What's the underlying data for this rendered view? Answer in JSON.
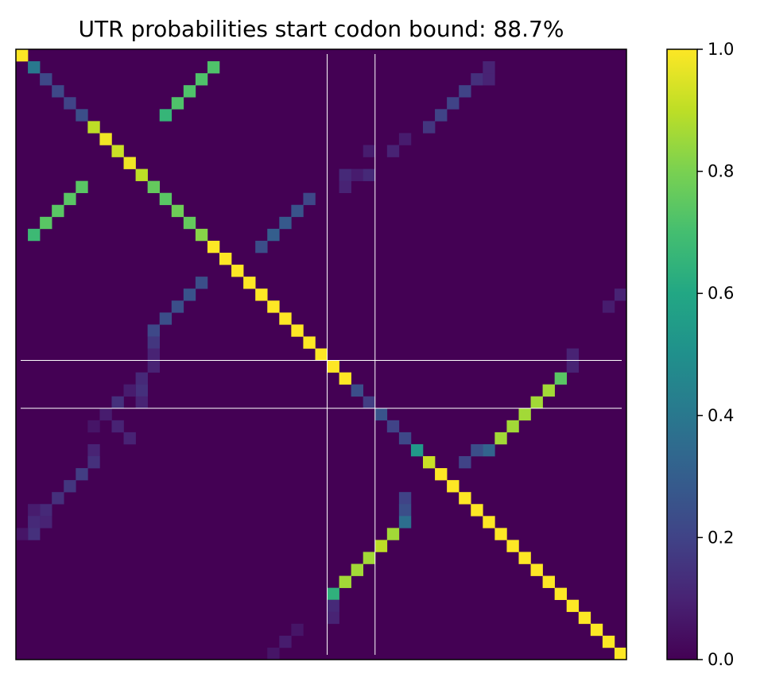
{
  "chart_data": {
    "type": "heatmap",
    "title": "UTR probabilities start codon bound: 88.7%",
    "xlabel": "",
    "ylabel": "",
    "grid": false,
    "x_ticks_visible": false,
    "y_ticks_visible": false,
    "n": 51,
    "colormap": "viridis",
    "colorbar": {
      "range": [
        0,
        1
      ],
      "ticks": [
        0.0,
        0.2,
        0.4,
        0.6,
        0.8,
        1.0
      ],
      "tick_labels": [
        "0.0",
        "0.2",
        "0.4",
        "0.6",
        "0.8",
        "1.0"
      ]
    },
    "reference_lines": {
      "vertical": [
        26,
        30
      ],
      "horizontal": [
        26,
        30
      ],
      "color": "#ffffff"
    },
    "cells": [
      [
        0,
        0,
        1.0
      ],
      [
        1,
        1,
        0.4
      ],
      [
        2,
        2,
        0.22
      ],
      [
        3,
        3,
        0.22
      ],
      [
        4,
        4,
        0.2
      ],
      [
        5,
        5,
        0.24
      ],
      [
        6,
        6,
        0.9
      ],
      [
        7,
        7,
        0.98
      ],
      [
        8,
        8,
        0.92
      ],
      [
        9,
        9,
        0.98
      ],
      [
        10,
        10,
        0.9
      ],
      [
        11,
        11,
        0.76
      ],
      [
        12,
        12,
        0.74
      ],
      [
        13,
        13,
        0.78
      ],
      [
        14,
        14,
        0.76
      ],
      [
        15,
        15,
        0.82
      ],
      [
        16,
        16,
        1.0
      ],
      [
        17,
        17,
        1.0
      ],
      [
        18,
        18,
        1.0
      ],
      [
        19,
        19,
        1.0
      ],
      [
        20,
        20,
        1.0
      ],
      [
        21,
        21,
        1.0
      ],
      [
        22,
        22,
        1.0
      ],
      [
        23,
        23,
        1.0
      ],
      [
        24,
        24,
        1.0
      ],
      [
        25,
        25,
        1.0
      ],
      [
        26,
        26,
        1.0
      ],
      [
        27,
        27,
        1.0
      ],
      [
        28,
        28,
        0.24
      ],
      [
        29,
        29,
        0.18
      ],
      [
        30,
        30,
        0.26
      ],
      [
        31,
        31,
        0.2
      ],
      [
        32,
        32,
        0.22
      ],
      [
        33,
        33,
        0.54
      ],
      [
        34,
        34,
        0.92
      ],
      [
        35,
        35,
        1.0
      ],
      [
        36,
        36,
        1.0
      ],
      [
        37,
        37,
        1.0
      ],
      [
        38,
        38,
        1.0
      ],
      [
        39,
        39,
        1.0
      ],
      [
        40,
        40,
        1.0
      ],
      [
        41,
        41,
        1.0
      ],
      [
        42,
        42,
        1.0
      ],
      [
        43,
        43,
        1.0
      ],
      [
        44,
        44,
        1.0
      ],
      [
        45,
        45,
        1.0
      ],
      [
        46,
        46,
        1.0
      ],
      [
        47,
        47,
        1.0
      ],
      [
        48,
        48,
        1.0
      ],
      [
        49,
        49,
        1.0
      ],
      [
        50,
        50,
        1.0
      ],
      [
        1,
        16,
        0.72
      ],
      [
        2,
        15,
        0.72
      ],
      [
        3,
        14,
        0.72
      ],
      [
        4,
        13,
        0.72
      ],
      [
        5,
        12,
        0.66
      ],
      [
        11,
        5,
        0.74
      ],
      [
        12,
        4,
        0.74
      ],
      [
        13,
        3,
        0.74
      ],
      [
        14,
        2,
        0.74
      ],
      [
        15,
        1,
        0.68
      ],
      [
        1,
        39,
        0.1
      ],
      [
        2,
        38,
        0.14
      ],
      [
        2,
        39,
        0.1
      ],
      [
        3,
        37,
        0.2
      ],
      [
        4,
        36,
        0.2
      ],
      [
        5,
        35,
        0.2
      ],
      [
        6,
        34,
        0.16
      ],
      [
        7,
        32,
        0.08
      ],
      [
        8,
        31,
        0.1
      ],
      [
        8,
        29,
        0.08
      ],
      [
        10,
        28,
        0.08
      ],
      [
        10,
        27,
        0.12
      ],
      [
        10,
        29,
        0.12
      ],
      [
        11,
        27,
        0.1
      ],
      [
        12,
        24,
        0.22
      ],
      [
        13,
        23,
        0.26
      ],
      [
        14,
        22,
        0.28
      ],
      [
        15,
        21,
        0.3
      ],
      [
        16,
        20,
        0.24
      ],
      [
        19,
        15,
        0.24
      ],
      [
        20,
        14,
        0.26
      ],
      [
        21,
        13,
        0.24
      ],
      [
        22,
        12,
        0.24
      ],
      [
        23,
        11,
        0.22
      ],
      [
        24,
        11,
        0.16
      ],
      [
        25,
        11,
        0.1
      ],
      [
        26,
        11,
        0.1
      ],
      [
        27,
        10,
        0.12
      ],
      [
        28,
        10,
        0.14
      ],
      [
        28,
        9,
        0.08
      ],
      [
        29,
        8,
        0.14
      ],
      [
        29,
        10,
        0.1
      ],
      [
        30,
        7,
        0.08
      ],
      [
        31,
        8,
        0.1
      ],
      [
        31,
        6,
        0.06
      ],
      [
        32,
        9,
        0.1
      ],
      [
        33,
        6,
        0.1
      ],
      [
        34,
        6,
        0.14
      ],
      [
        35,
        5,
        0.18
      ],
      [
        36,
        4,
        0.16
      ],
      [
        37,
        3,
        0.14
      ],
      [
        38,
        2,
        0.12
      ],
      [
        38,
        1,
        0.08
      ],
      [
        39,
        2,
        0.1
      ],
      [
        39,
        1,
        0.12
      ],
      [
        40,
        1,
        0.14
      ],
      [
        40,
        0,
        0.06
      ],
      [
        25,
        46,
        0.1
      ],
      [
        26,
        46,
        0.1
      ],
      [
        27,
        45,
        0.74
      ],
      [
        28,
        44,
        0.86
      ],
      [
        29,
        43,
        0.86
      ],
      [
        30,
        42,
        0.86
      ],
      [
        31,
        41,
        0.86
      ],
      [
        32,
        40,
        0.86
      ],
      [
        33,
        39,
        0.32
      ],
      [
        33,
        38,
        0.24
      ],
      [
        34,
        37,
        0.2
      ],
      [
        20,
        50,
        0.1
      ],
      [
        21,
        49,
        0.08
      ],
      [
        37,
        32,
        0.2
      ],
      [
        38,
        32,
        0.24
      ],
      [
        39,
        32,
        0.36
      ],
      [
        40,
        31,
        0.86
      ],
      [
        41,
        30,
        0.9
      ],
      [
        42,
        29,
        0.86
      ],
      [
        43,
        28,
        0.86
      ],
      [
        44,
        27,
        0.86
      ],
      [
        45,
        26,
        0.64
      ],
      [
        46,
        26,
        0.12
      ],
      [
        47,
        26,
        0.1
      ],
      [
        48,
        23,
        0.06
      ],
      [
        49,
        22,
        0.08
      ],
      [
        50,
        21,
        0.06
      ]
    ]
  }
}
